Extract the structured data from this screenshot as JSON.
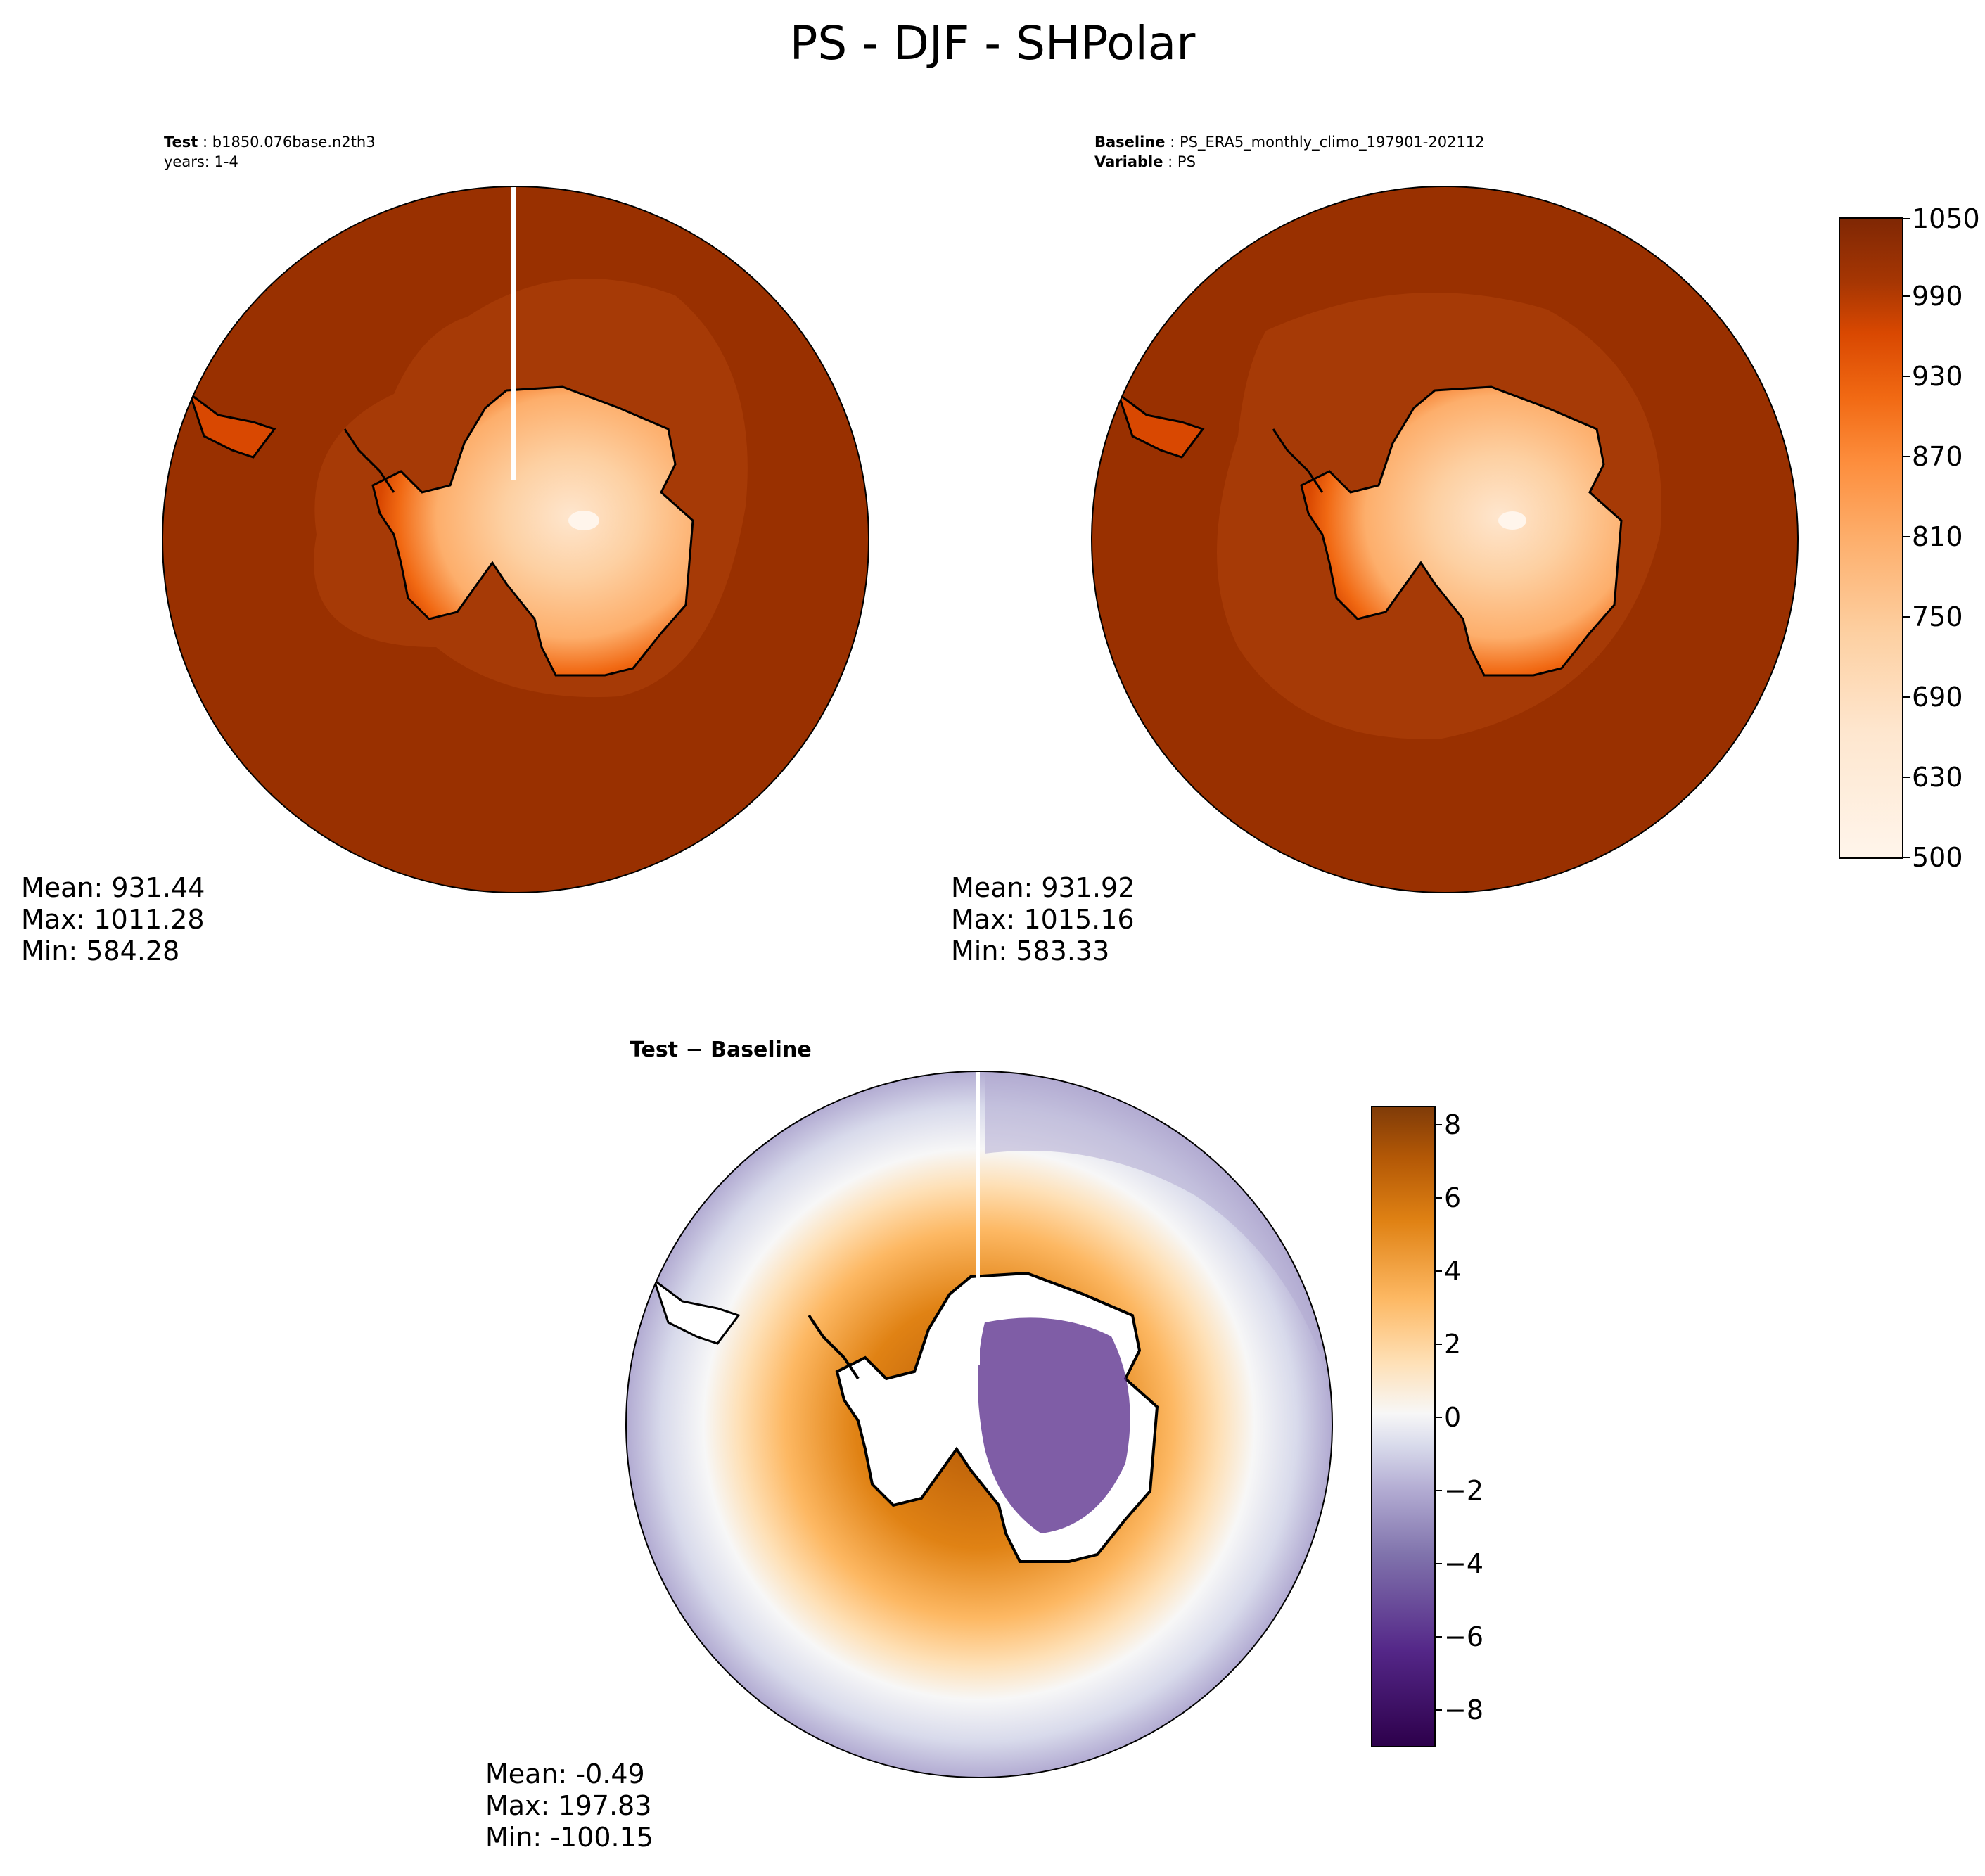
{
  "figure": {
    "title": "PS - DJF - SHPolar"
  },
  "panels": {
    "test": {
      "label": "Test",
      "case": "b1850.076base.n2th3",
      "years": "years: 1-4",
      "mean": "Mean: 931.44",
      "max": "Max: 1011.28",
      "min": "Min: 584.28"
    },
    "baseline": {
      "label": "Baseline",
      "case": "PS_ERA5_monthly_climo_197901-202112",
      "variable_label": "Variable",
      "variable": "PS",
      "mean": "Mean: 931.92",
      "max": "Max: 1015.16",
      "min": "Min: 583.33"
    },
    "diff": {
      "title_a": "Test",
      "title_sep": "−",
      "title_b": "Baseline",
      "mean": "Mean: -0.49",
      "max": "Max: 197.83",
      "min": "Min: -100.15"
    }
  },
  "colorbars": {
    "main": {
      "ticks": [
        "500",
        "630",
        "690",
        "750",
        "810",
        "870",
        "930",
        "990",
        "1050"
      ],
      "range": [
        500,
        1050
      ],
      "colors": [
        "#fff5eb",
        "#fee6ce",
        "#fdd0a2",
        "#fdae6b",
        "#fd8d3c",
        "#f16913",
        "#d94801",
        "#a63603",
        "#7f2704"
      ]
    },
    "diff": {
      "ticks": [
        "8",
        "6",
        "4",
        "2",
        "0",
        "−2",
        "−4",
        "−6",
        "−8"
      ],
      "range": [
        -9,
        8.5
      ],
      "colors": [
        "#2d004b",
        "#542788",
        "#8073ac",
        "#b2abd2",
        "#d8daeb",
        "#f7f7f7",
        "#fee0b6",
        "#fdb863",
        "#e08214",
        "#b35806",
        "#7f3b08"
      ]
    }
  },
  "colors": {
    "ocean_main": "#993000",
    "ocean_ring": "#a63a06",
    "land_interior": "#fdd0a2",
    "coast": "#000000"
  }
}
